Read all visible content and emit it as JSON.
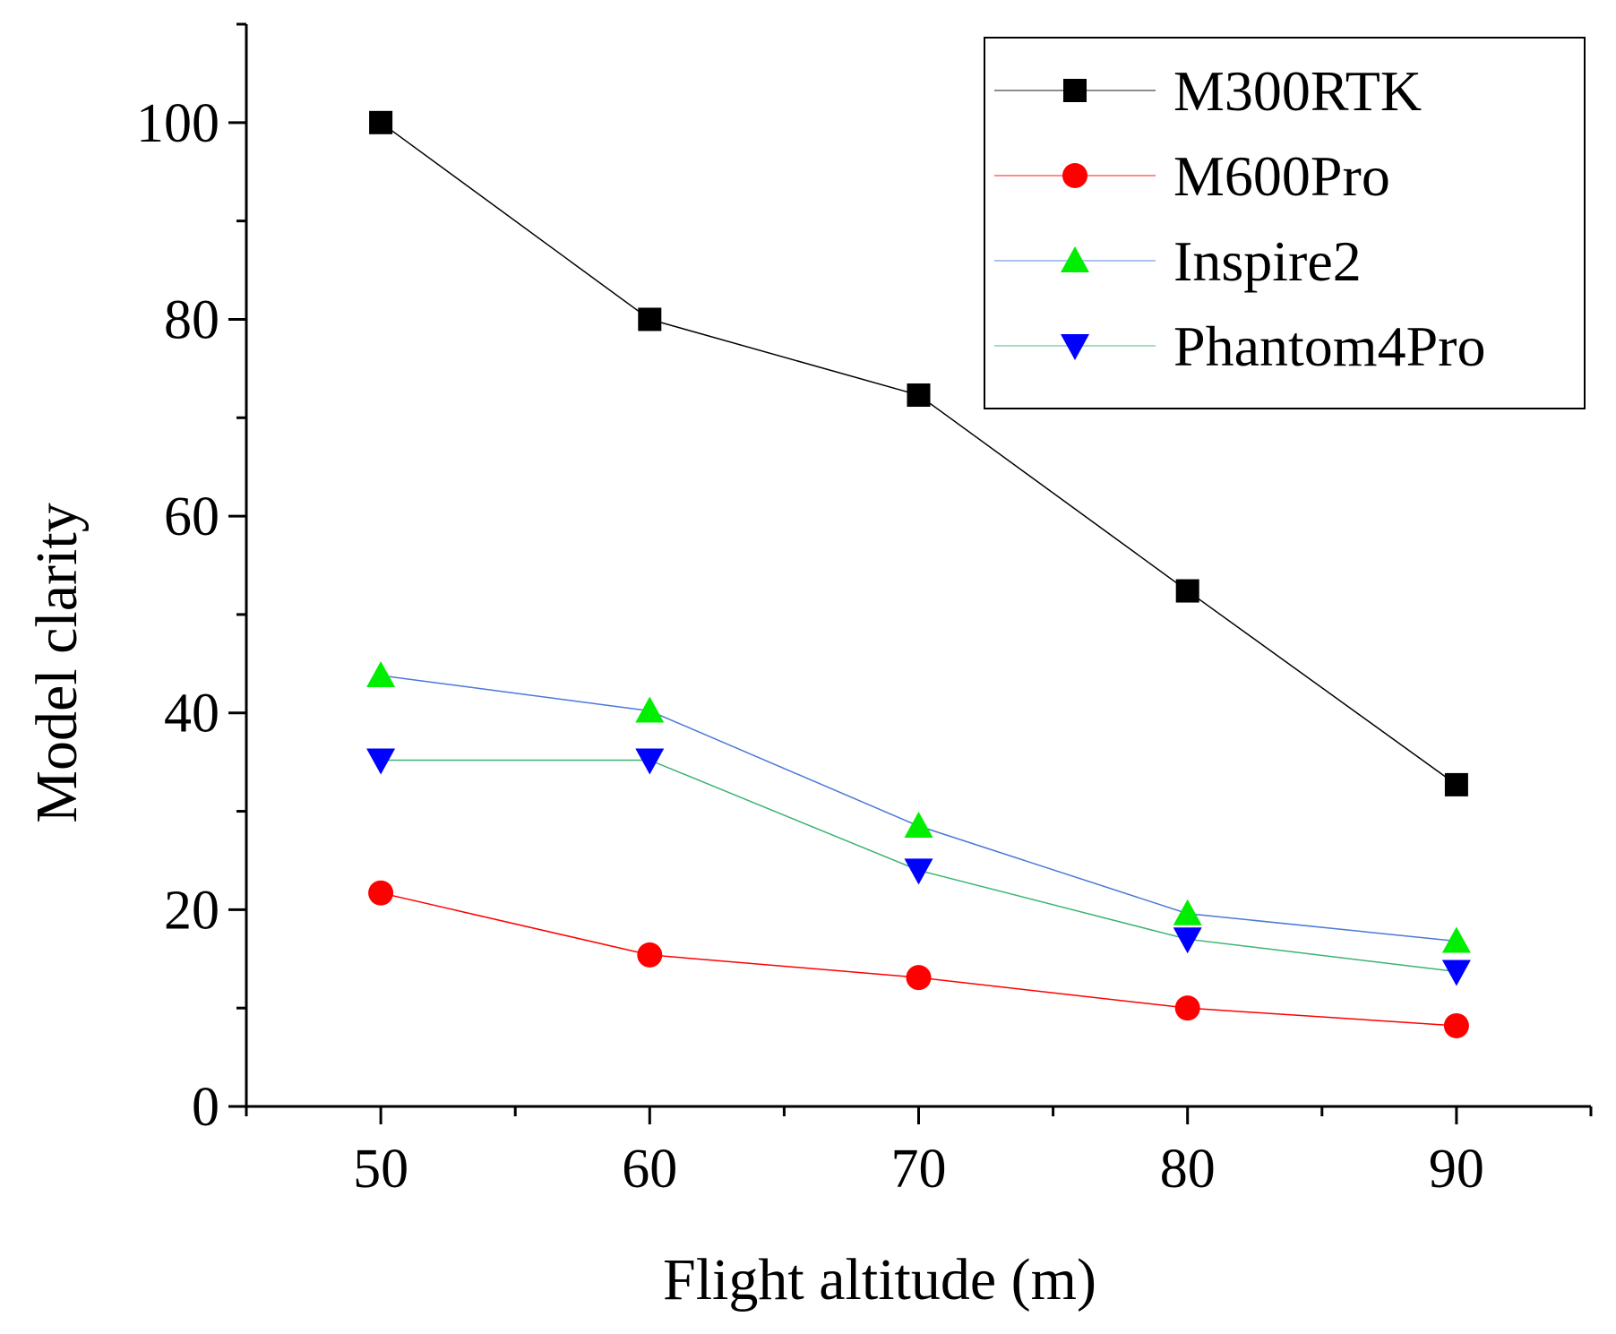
{
  "chart_data": {
    "type": "line",
    "title": "",
    "xlabel": "Flight altitude (m)",
    "ylabel": "Model clarity",
    "x": [
      50,
      60,
      70,
      80,
      90
    ],
    "xlim": [
      45,
      95
    ],
    "ylim": [
      0,
      110
    ],
    "xticks": [
      50,
      60,
      70,
      80,
      90
    ],
    "yticks": [
      0,
      20,
      40,
      60,
      80,
      100
    ],
    "grid": false,
    "legend_position": "top-right",
    "series": [
      {
        "name": "M300RTK",
        "values": [
          100,
          80,
          72.3,
          52.4,
          32.7
        ],
        "color": "#000000",
        "marker": "square"
      },
      {
        "name": "M600Pro",
        "values": [
          21.7,
          15.4,
          13.1,
          10,
          8.2
        ],
        "color": "#ff0000",
        "marker": "circle"
      },
      {
        "name": "Inspire2",
        "values": [
          43.8,
          40.2,
          28.5,
          19.6,
          16.8
        ],
        "color": "#00ee00",
        "line_color": "#4a78d8",
        "marker": "triangle-up"
      },
      {
        "name": "Phantom4Pro",
        "values": [
          35.2,
          35.2,
          24,
          17,
          13.7
        ],
        "color": "#0000ff",
        "line_color": "#3cb371",
        "marker": "triangle-down"
      }
    ]
  }
}
